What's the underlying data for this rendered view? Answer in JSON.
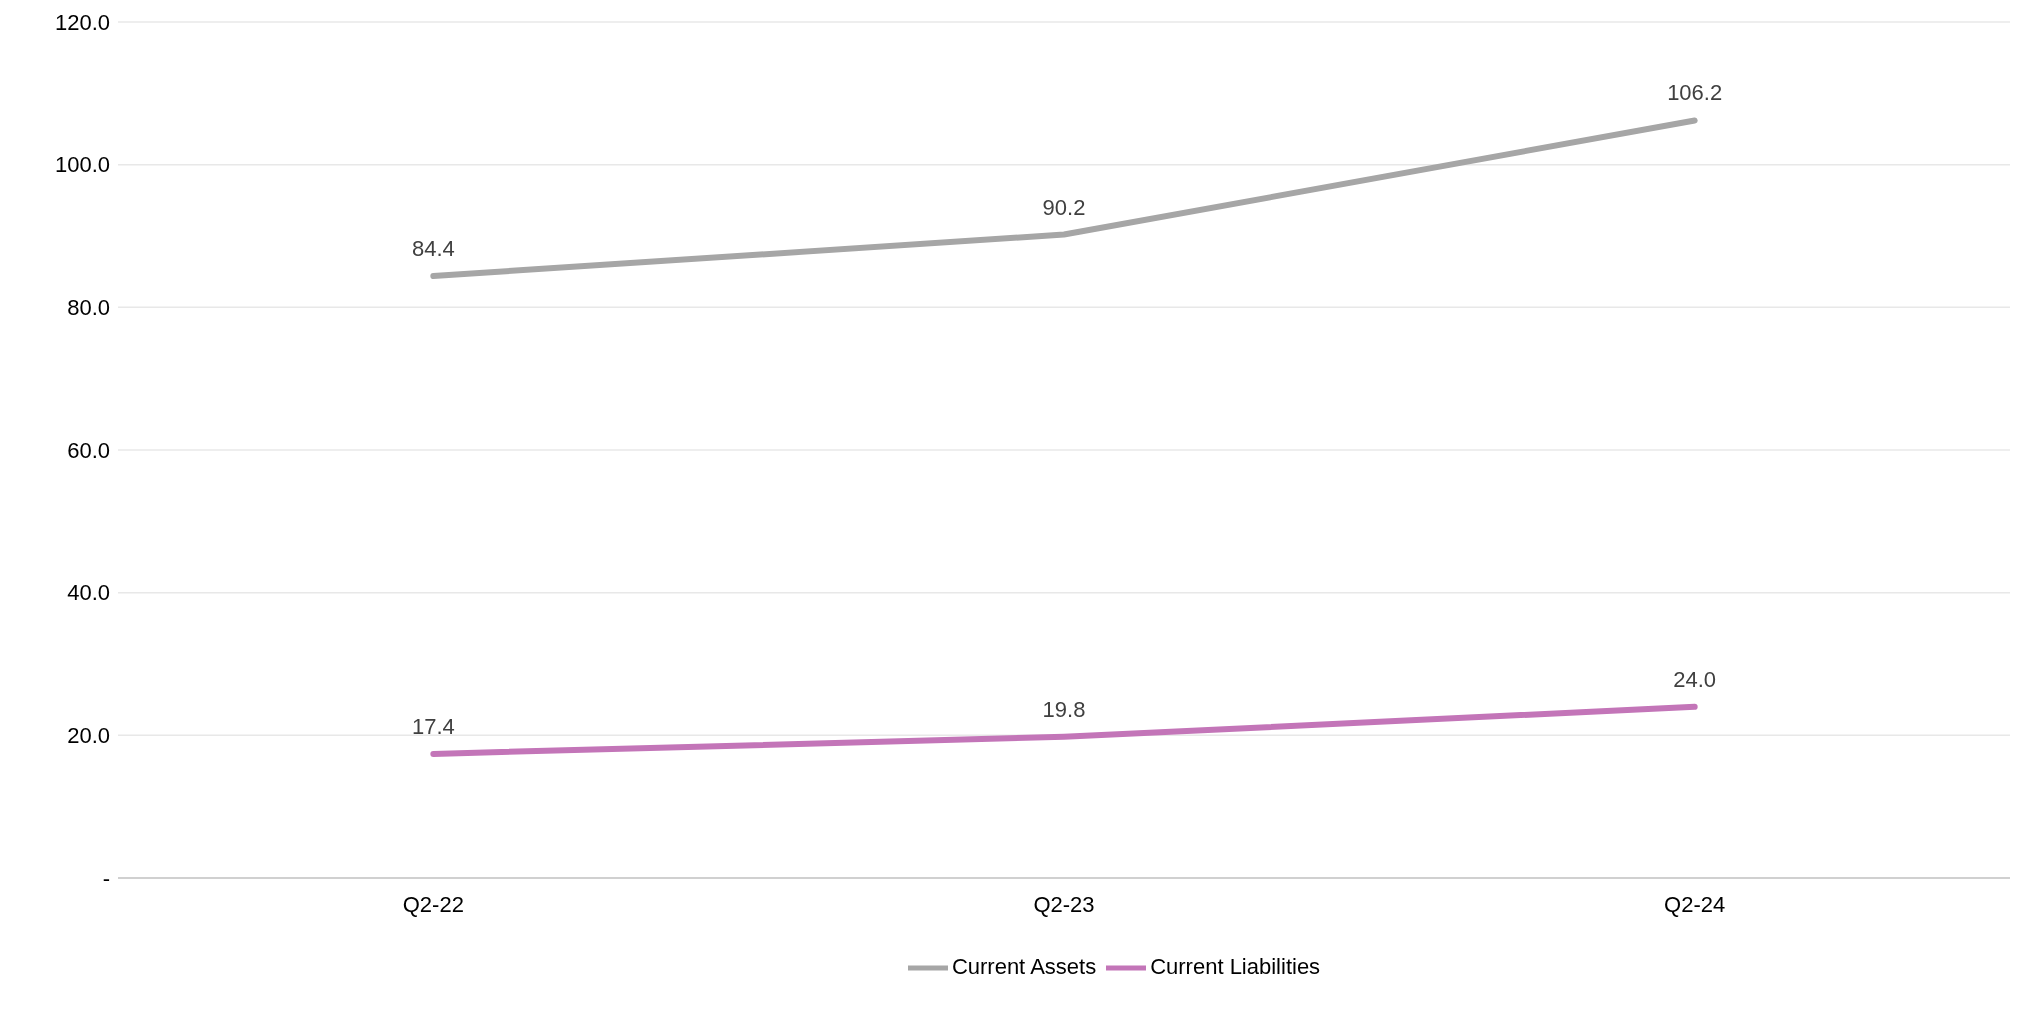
{
  "chart_data": {
    "type": "line",
    "categories": [
      "Q2-22",
      "Q2-23",
      "Q2-24"
    ],
    "series": [
      {
        "name": "Current Assets",
        "color": "#a6a6a6",
        "values": [
          84.4,
          90.2,
          106.2
        ],
        "value_labels": [
          "84.4",
          "90.2",
          "106.2"
        ]
      },
      {
        "name": "Current Liabilities",
        "color": "#c375b8",
        "values": [
          17.4,
          19.8,
          24.0
        ],
        "value_labels": [
          "17.4",
          "19.8",
          "24.0"
        ]
      }
    ],
    "ylim": [
      0,
      120
    ],
    "yticks": [
      {
        "value": 0,
        "label": "-"
      },
      {
        "value": 20,
        "label": "20.0"
      },
      {
        "value": 40,
        "label": "40.0"
      },
      {
        "value": 60,
        "label": "60.0"
      },
      {
        "value": 80,
        "label": "80.0"
      },
      {
        "value": 100,
        "label": "100.0"
      },
      {
        "value": 120,
        "label": "120.0"
      }
    ],
    "grid": "y",
    "legend": "bottom",
    "marker": "none",
    "line_style": "solid"
  }
}
